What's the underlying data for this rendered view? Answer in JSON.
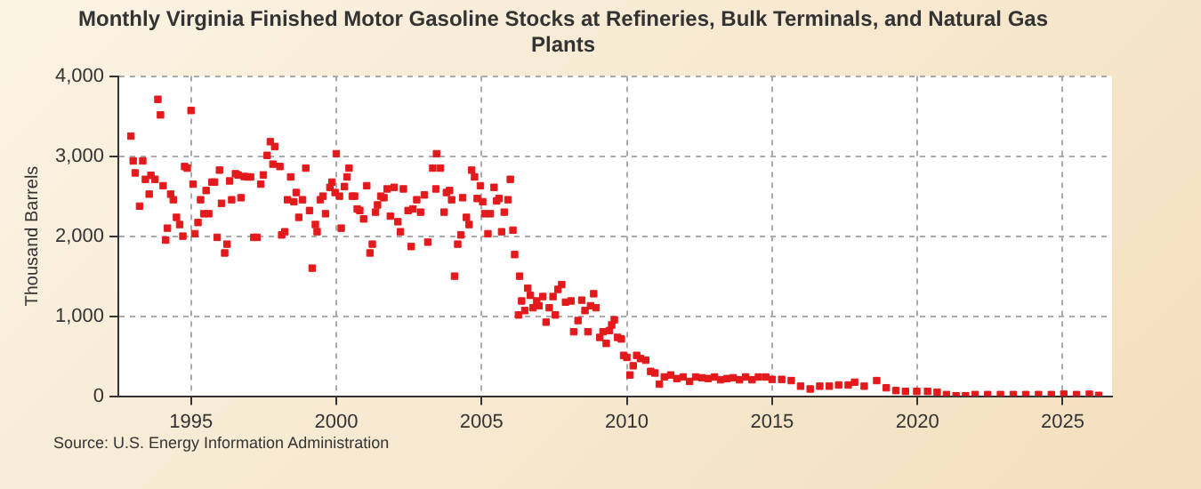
{
  "chart_data": {
    "type": "scatter",
    "title": "Monthly Virginia Finished Motor Gasoline Stocks at Refineries, Bulk Terminals, and Natural Gas Plants",
    "ylabel": "Thousand Barrels",
    "annotations": [
      "Source: U.S. Energy Information Administration"
    ],
    "xlim": [
      1992.5,
      2026.7
    ],
    "xticks": [
      1995,
      2000,
      2005,
      2010,
      2015,
      2020,
      2025
    ],
    "ylim": [
      0,
      4000
    ],
    "yticks": [
      0,
      {
        "value": 1000,
        "label": "1,000"
      },
      {
        "value": 2000,
        "label": "2,000"
      },
      {
        "value": 3000,
        "label": "3,000"
      },
      {
        "value": 4000,
        "label": "4,000"
      }
    ],
    "grid": true,
    "legend": false,
    "marker": "square",
    "series": [
      {
        "color": "#e31a1c",
        "x": [
          1992.93,
          1993.01,
          1993.08,
          1993.23,
          1993.34,
          1993.43,
          1993.56,
          1993.62,
          1993.76,
          1993.86,
          1993.95,
          1994.04,
          1994.13,
          1994.19,
          1994.3,
          1994.39,
          1994.5,
          1994.61,
          1994.72,
          1994.78,
          1994.87,
          1995.0,
          1995.07,
          1995.13,
          1995.24,
          1995.33,
          1995.44,
          1995.52,
          1995.61,
          1995.72,
          1995.81,
          1995.9,
          1995.98,
          1996.05,
          1996.16,
          1996.24,
          1996.33,
          1996.4,
          1996.53,
          1996.62,
          1996.72,
          1996.83,
          1996.94,
          1997.05,
          1997.16,
          1997.27,
          1997.4,
          1997.49,
          1997.62,
          1997.73,
          1997.82,
          1997.88,
          1998.06,
          1998.12,
          1998.23,
          1998.32,
          1998.43,
          1998.54,
          1998.62,
          1998.71,
          1998.84,
          1998.95,
          1999.08,
          1999.17,
          1999.28,
          1999.34,
          1999.45,
          1999.54,
          1999.63,
          1999.78,
          1999.85,
          1999.96,
          2000.0,
          2000.11,
          2000.17,
          2000.28,
          2000.37,
          2000.44,
          2000.55,
          2000.63,
          2000.72,
          2000.81,
          2000.94,
          2001.05,
          2001.16,
          2001.24,
          2001.35,
          2001.42,
          2001.53,
          2001.64,
          2001.75,
          2001.86,
          2001.99,
          2002.12,
          2002.21,
          2002.31,
          2002.47,
          2002.58,
          2002.64,
          2002.77,
          2002.9,
          2003.03,
          2003.15,
          2003.32,
          2003.43,
          2003.45,
          2003.58,
          2003.71,
          2003.79,
          2003.9,
          2003.97,
          2004.07,
          2004.18,
          2004.29,
          2004.35,
          2004.48,
          2004.57,
          2004.66,
          2004.76,
          2004.85,
          2004.96,
          2005.04,
          2005.11,
          2005.22,
          2005.3,
          2005.43,
          2005.52,
          2005.6,
          2005.69,
          2005.78,
          2005.91,
          2005.99,
          2006.08,
          2006.14,
          2006.27,
          2006.31,
          2006.38,
          2006.49,
          2006.59,
          2006.68,
          2006.77,
          2006.9,
          2006.98,
          2007.11,
          2007.22,
          2007.33,
          2007.46,
          2007.54,
          2007.63,
          2007.76,
          2007.89,
          2008.08,
          2008.17,
          2008.32,
          2008.45,
          2008.56,
          2008.66,
          2008.75,
          2008.86,
          2008.94,
          2009.07,
          2009.18,
          2009.29,
          2009.4,
          2009.48,
          2009.57,
          2009.68,
          2009.81,
          2009.89,
          2010.0,
          2010.11,
          2010.22,
          2010.34,
          2010.47,
          2010.65,
          2010.82,
          2010.97,
          2011.12,
          2011.29,
          2011.51,
          2011.72,
          2011.94,
          2012.16,
          2012.37,
          2012.59,
          2012.8,
          2013.02,
          2013.23,
          2013.45,
          2013.66,
          2013.88,
          2014.09,
          2014.31,
          2014.53,
          2014.78,
          2015.0,
          2015.33,
          2015.66,
          2015.98,
          2016.31,
          2016.64,
          2016.97,
          2017.29,
          2017.62,
          2017.84,
          2018.17,
          2018.6,
          2018.93,
          2019.26,
          2019.59,
          2019.98,
          2020.35,
          2020.68,
          2021.0,
          2021.33,
          2021.66,
          2021.99,
          2022.42,
          2022.86,
          2023.3,
          2023.73,
          2024.17,
          2024.61,
          2025.04,
          2025.48,
          2025.92,
          2026.24
        ],
        "values": [
          3250,
          2940,
          2790,
          2375,
          2940,
          2710,
          2525,
          2760,
          2710,
          3710,
          3515,
          2630,
          1950,
          2100,
          2525,
          2455,
          2235,
          2145,
          2000,
          2870,
          2850,
          3570,
          2650,
          2030,
          2170,
          2455,
          2280,
          2570,
          2280,
          2675,
          2675,
          1985,
          2825,
          2410,
          1790,
          1900,
          2690,
          2455,
          2780,
          2765,
          2480,
          2745,
          2740,
          2740,
          1985,
          1985,
          2650,
          2765,
          3010,
          3180,
          2900,
          3120,
          2870,
          2015,
          2055,
          2455,
          2740,
          2430,
          2545,
          2235,
          2455,
          2850,
          2320,
          1600,
          2145,
          2055,
          2455,
          2500,
          2280,
          2610,
          2675,
          2545,
          3030,
          2500,
          2100,
          2620,
          2740,
          2850,
          2500,
          2500,
          2340,
          2320,
          2215,
          2630,
          1790,
          1900,
          2300,
          2390,
          2500,
          2480,
          2590,
          2250,
          2610,
          2180,
          2055,
          2590,
          2320,
          1870,
          2340,
          2455,
          2300,
          2515,
          1925,
          2850,
          2590,
          3030,
          2850,
          2300,
          2545,
          2570,
          2455,
          1500,
          1900,
          2015,
          2480,
          2235,
          2145,
          2825,
          2740,
          2470,
          2630,
          2430,
          2280,
          2030,
          2280,
          2610,
          2440,
          2470,
          2055,
          2300,
          2455,
          2710,
          2075,
          1770,
          1015,
          1500,
          1190,
          1070,
          1350,
          1260,
          1105,
          1190,
          1130,
          1245,
          925,
          1105,
          1245,
          1015,
          1335,
          1395,
          1175,
          1190,
          805,
          945,
          1200,
          1070,
          805,
          1130,
          1280,
          1105,
          735,
          805,
          660,
          820,
          890,
          955,
          735,
          715,
          510,
          485,
          265,
          380,
          510,
          470,
          450,
          310,
          290,
          150,
          240,
          265,
          220,
          240,
          185,
          240,
          230,
          220,
          240,
          205,
          220,
          230,
          205,
          240,
          205,
          240,
          240,
          210,
          210,
          195,
          125,
          90,
          125,
          125,
          140,
          140,
          175,
          125,
          195,
          105,
          70,
          60,
          60,
          60,
          50,
          20,
          5,
          5,
          20,
          20,
          20,
          20,
          20,
          20,
          20,
          25,
          20,
          25,
          10
        ]
      }
    ]
  }
}
